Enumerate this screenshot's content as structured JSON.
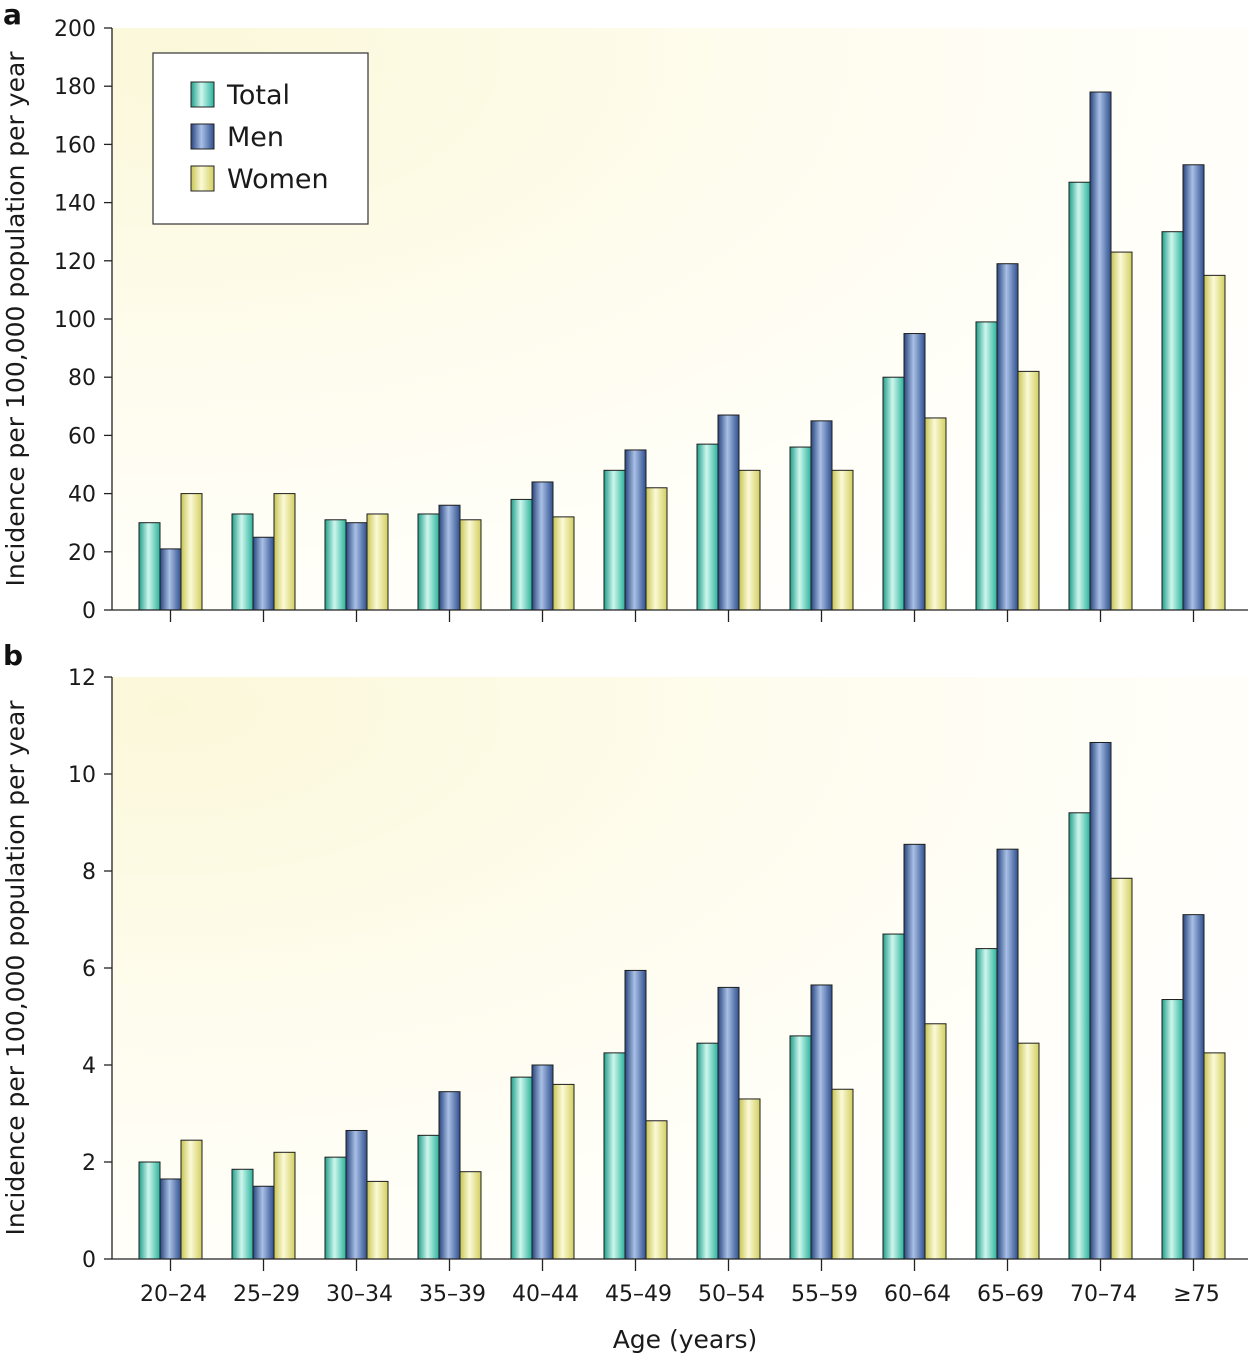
{
  "legend": {
    "entries": [
      {
        "label": "Total",
        "series": "total"
      },
      {
        "label": "Men",
        "series": "men"
      },
      {
        "label": "Women",
        "series": "women"
      }
    ],
    "placement": "top-left"
  },
  "colors": {
    "total": "#3ec9b2",
    "men": "#3f63a5",
    "women": "#e2e07a",
    "background_fade": "#fdfbe6"
  },
  "chart_data": [
    {
      "panel": "a",
      "type": "bar",
      "categories": [
        "20–24",
        "25–29",
        "30–34",
        "35–39",
        "40–44",
        "45–49",
        "50–54",
        "55–59",
        "60–64",
        "65–69",
        "70–74",
        "≥75"
      ],
      "series": [
        {
          "name": "Total",
          "values": [
            30,
            33,
            31,
            33,
            38,
            48,
            57,
            56,
            80,
            99,
            147,
            130
          ]
        },
        {
          "name": "Men",
          "values": [
            21,
            25,
            30,
            36,
            44,
            55,
            67,
            65,
            95,
            119,
            178,
            153
          ]
        },
        {
          "name": "Women",
          "values": [
            40,
            40,
            33,
            31,
            32,
            42,
            48,
            48,
            66,
            82,
            123,
            115
          ]
        }
      ],
      "ylabel": "Incidence per 100,000 population per year",
      "xlabel": "",
      "ylim": [
        0,
        200
      ],
      "yticks": [
        "0",
        "20",
        "40",
        "60",
        "80",
        "100",
        "120",
        "140",
        "160",
        "180",
        "200"
      ],
      "show_x_tick_labels": false,
      "grid": false,
      "legend_placement": "top-left"
    },
    {
      "panel": "b",
      "type": "bar",
      "categories": [
        "20–24",
        "25–29",
        "30–34",
        "35–39",
        "40–44",
        "45–49",
        "50–54",
        "55–59",
        "60–64",
        "65–69",
        "70–74",
        "≥75"
      ],
      "series": [
        {
          "name": "Total",
          "values": [
            2.0,
            1.85,
            2.1,
            2.55,
            3.75,
            4.25,
            4.45,
            4.6,
            6.7,
            6.4,
            9.2,
            5.35
          ]
        },
        {
          "name": "Men",
          "values": [
            1.65,
            1.5,
            2.65,
            3.45,
            4.0,
            5.95,
            5.6,
            5.65,
            8.55,
            8.45,
            10.65,
            7.1
          ]
        },
        {
          "name": "Women",
          "values": [
            2.45,
            2.2,
            1.6,
            1.8,
            3.6,
            2.85,
            3.3,
            3.5,
            4.85,
            4.45,
            7.85,
            4.25
          ]
        }
      ],
      "ylabel": "Incidence per 100,000 population per year",
      "xlabel": "Age (years)",
      "ylim": [
        0,
        12
      ],
      "yticks": [
        "0",
        "2",
        "4",
        "6",
        "8",
        "10",
        "12"
      ],
      "show_x_tick_labels": true,
      "grid": false,
      "legend_placement": "none"
    }
  ]
}
